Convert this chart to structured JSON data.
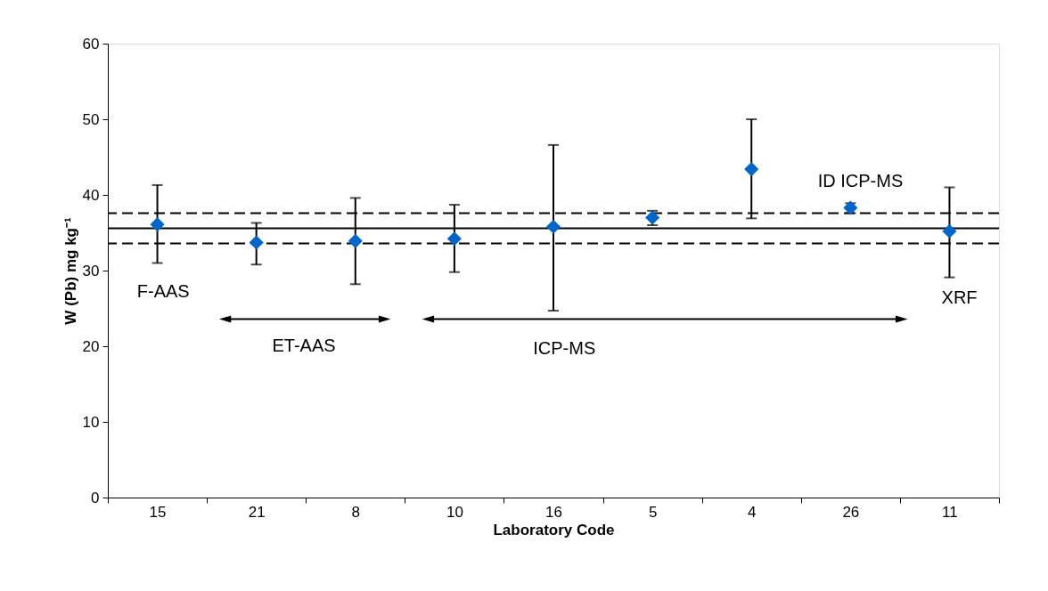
{
  "chart_data": {
    "type": "scatter",
    "xlabel": "Laboratory Code",
    "ylabel": "W (Pb) mg kg⁻¹",
    "categories": [
      "15",
      "21",
      "8",
      "10",
      "16",
      "5",
      "4",
      "26",
      "11"
    ],
    "series": [
      {
        "color": "#0066cc",
        "values": [
          36.1,
          33.7,
          33.9,
          34.2,
          35.8,
          37.0,
          43.4,
          38.3,
          35.2
        ],
        "errors": [
          [
            31.0,
            41.3
          ],
          [
            30.8,
            36.3
          ],
          [
            28.2,
            39.6
          ],
          [
            29.8,
            38.7
          ],
          [
            24.7,
            46.6
          ],
          [
            36.0,
            37.9
          ],
          [
            36.9,
            50.0
          ],
          [
            37.6,
            38.9
          ],
          [
            29.1,
            41.0
          ]
        ]
      }
    ],
    "marker": "diamond",
    "ylim": [
      0,
      60
    ],
    "yticks": [
      0,
      10,
      20,
      30,
      40,
      50,
      60
    ],
    "grid": false,
    "ref_lines": [
      {
        "axis": "y",
        "value": 35.6,
        "line_style": "solid",
        "color": "#000000"
      },
      {
        "axis": "y",
        "value": 37.6,
        "line_style": "dashed",
        "color": "#000000"
      },
      {
        "axis": "y",
        "value": 33.6,
        "line_style": "dashed",
        "color": "#000000"
      }
    ],
    "annotations": [
      "F-AAS",
      "ET-AAS",
      "ICP-MS",
      "ID ICP-MS",
      "XRF"
    ]
  }
}
